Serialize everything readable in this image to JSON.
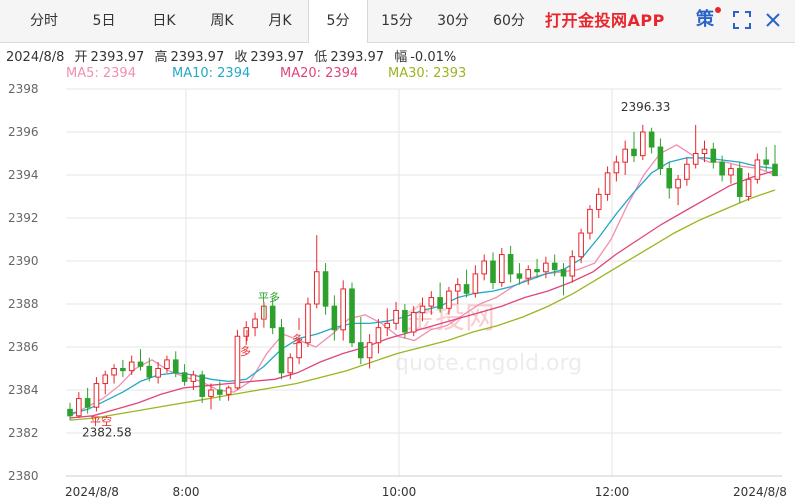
{
  "tabs": [
    {
      "label": "分时",
      "active": false
    },
    {
      "label": "5日",
      "active": false
    },
    {
      "label": "日K",
      "active": false
    },
    {
      "label": "周K",
      "active": false
    },
    {
      "label": "月K",
      "active": false
    },
    {
      "label": "5分",
      "active": true
    },
    {
      "label": "15分",
      "active": false
    },
    {
      "label": "30分",
      "active": false
    },
    {
      "label": "60分",
      "active": false
    }
  ],
  "brand": "打开金投网APP",
  "toolbar": {
    "ce_icon_label": "策",
    "icons": [
      "ce-icon",
      "fullscreen-icon",
      "close-icon"
    ]
  },
  "info": {
    "date": "2024/8/8",
    "open_label": "开",
    "open": "2393.97",
    "high_label": "高",
    "high": "2393.97",
    "close_label": "收",
    "close": "2393.97",
    "low_label": "低",
    "low": "2393.97",
    "change_label": "幅",
    "change": "-0.01%"
  },
  "ma_legend": [
    {
      "label": "MA5: 2394",
      "color": "#f08fb0"
    },
    {
      "label": "MA10: 2394",
      "color": "#24a8c8"
    },
    {
      "label": "MA20: 2394",
      "color": "#e0457b"
    },
    {
      "label": "MA30: 2393",
      "color": "#9ab522"
    }
  ],
  "watermark": {
    "text": "quote.cngold.org",
    "logo": "金投网"
  },
  "colors": {
    "up": "#e8262c",
    "down": "#2ea02e",
    "grid": "#e6e6e6"
  },
  "chart_data": {
    "type": "candlestick",
    "ylim": [
      2380,
      2398
    ],
    "y_ticks": [
      "2398",
      "2396",
      "2394",
      "2392",
      "2390",
      "2388",
      "2386",
      "2384",
      "2382",
      "2380"
    ],
    "x_ticks": [
      "2024/8/8",
      "8:00",
      "10:00",
      "12:00",
      "2024/8/8"
    ],
    "grid": true,
    "annotations": [
      {
        "text": "2396.33",
        "value": 2396.33,
        "kind": "high"
      },
      {
        "text": "2382.58",
        "value": 2382.58,
        "kind": "low"
      }
    ],
    "signals": [
      {
        "text": "平多",
        "color": "#2ea02e"
      },
      {
        "text": "多",
        "color": "#e8262c"
      },
      {
        "text": "多",
        "color": "#e8262c"
      },
      {
        "text": "平空",
        "color": "#e8262c"
      }
    ],
    "ohlc": [
      [
        2383.1,
        2383.4,
        2382.6,
        2382.8
      ],
      [
        2382.8,
        2383.9,
        2382.7,
        2383.6
      ],
      [
        2383.6,
        2384.1,
        2382.9,
        2383.2
      ],
      [
        2383.2,
        2384.6,
        2383.0,
        2384.3
      ],
      [
        2384.3,
        2384.9,
        2383.8,
        2384.7
      ],
      [
        2384.7,
        2385.2,
        2384.3,
        2385.0
      ],
      [
        2385.0,
        2385.4,
        2384.6,
        2384.9
      ],
      [
        2384.9,
        2385.6,
        2384.7,
        2385.3
      ],
      [
        2385.3,
        2385.9,
        2384.9,
        2385.1
      ],
      [
        2385.1,
        2385.5,
        2384.4,
        2384.6
      ],
      [
        2384.6,
        2385.3,
        2384.3,
        2385.0
      ],
      [
        2385.0,
        2385.6,
        2384.8,
        2385.4
      ],
      [
        2385.4,
        2385.8,
        2384.6,
        2384.8
      ],
      [
        2384.8,
        2385.2,
        2384.2,
        2384.4
      ],
      [
        2384.4,
        2384.9,
        2384.0,
        2384.7
      ],
      [
        2384.7,
        2384.9,
        2383.4,
        2383.7
      ],
      [
        2383.7,
        2384.3,
        2383.1,
        2384.0
      ],
      [
        2384.0,
        2384.4,
        2383.5,
        2383.8
      ],
      [
        2383.8,
        2384.2,
        2383.5,
        2384.1
      ],
      [
        2384.1,
        2386.8,
        2384.0,
        2386.5
      ],
      [
        2386.5,
        2387.2,
        2386.1,
        2386.9
      ],
      [
        2386.9,
        2387.6,
        2386.5,
        2387.3
      ],
      [
        2387.3,
        2388.1,
        2386.9,
        2387.9
      ],
      [
        2387.9,
        2388.3,
        2386.6,
        2386.9
      ],
      [
        2386.9,
        2387.3,
        2384.5,
        2384.8
      ],
      [
        2384.8,
        2385.7,
        2384.5,
        2385.5
      ],
      [
        2385.5,
        2386.4,
        2385.2,
        2386.2
      ],
      [
        2386.2,
        2388.3,
        2386.0,
        2388.0
      ],
      [
        2388.0,
        2391.2,
        2387.8,
        2389.5
      ],
      [
        2389.5,
        2389.9,
        2387.5,
        2387.9
      ],
      [
        2387.9,
        2388.4,
        2386.3,
        2386.8
      ],
      [
        2386.8,
        2389.1,
        2386.3,
        2388.7
      ],
      [
        2388.7,
        2389.0,
        2386.0,
        2386.2
      ],
      [
        2386.2,
        2387.4,
        2385.2,
        2385.5
      ],
      [
        2385.5,
        2386.6,
        2385.0,
        2386.2
      ],
      [
        2386.2,
        2387.3,
        2385.7,
        2386.9
      ],
      [
        2386.9,
        2387.8,
        2386.5,
        2387.1
      ],
      [
        2387.1,
        2388.1,
        2386.8,
        2387.7
      ],
      [
        2387.7,
        2388.0,
        2386.4,
        2386.7
      ],
      [
        2386.7,
        2387.9,
        2386.5,
        2387.6
      ],
      [
        2387.6,
        2388.3,
        2387.2,
        2387.9
      ],
      [
        2387.9,
        2388.6,
        2387.5,
        2388.3
      ],
      [
        2388.3,
        2389.0,
        2387.6,
        2387.8
      ],
      [
        2387.8,
        2388.8,
        2387.5,
        2388.6
      ],
      [
        2388.6,
        2389.2,
        2388.0,
        2388.9
      ],
      [
        2388.9,
        2389.6,
        2388.3,
        2388.5
      ],
      [
        2388.5,
        2389.8,
        2388.3,
        2389.4
      ],
      [
        2389.4,
        2390.3,
        2389.1,
        2390.0
      ],
      [
        2390.0,
        2390.4,
        2388.7,
        2389.0
      ],
      [
        2389.0,
        2390.6,
        2388.8,
        2390.3
      ],
      [
        2390.3,
        2390.7,
        2389.0,
        2389.4
      ],
      [
        2389.4,
        2389.9,
        2388.9,
        2389.2
      ],
      [
        2389.2,
        2389.8,
        2388.9,
        2389.6
      ],
      [
        2389.6,
        2390.1,
        2389.2,
        2389.5
      ],
      [
        2389.5,
        2390.2,
        2389.2,
        2389.9
      ],
      [
        2389.9,
        2390.3,
        2389.3,
        2389.6
      ],
      [
        2389.6,
        2389.9,
        2388.4,
        2389.3
      ],
      [
        2389.3,
        2390.5,
        2389.0,
        2390.2
      ],
      [
        2390.2,
        2391.5,
        2389.9,
        2391.3
      ],
      [
        2391.3,
        2392.6,
        2391.0,
        2392.4
      ],
      [
        2392.4,
        2393.4,
        2392.0,
        2393.1
      ],
      [
        2393.1,
        2394.4,
        2392.8,
        2394.1
      ],
      [
        2394.1,
        2394.9,
        2393.7,
        2394.6
      ],
      [
        2394.6,
        2395.6,
        2394.0,
        2395.2
      ],
      [
        2395.2,
        2396.0,
        2394.6,
        2394.9
      ],
      [
        2394.9,
        2396.33,
        2394.7,
        2396.0
      ],
      [
        2396.0,
        2396.2,
        2395.0,
        2395.3
      ],
      [
        2395.3,
        2395.7,
        2394.0,
        2394.3
      ],
      [
        2394.3,
        2394.6,
        2392.9,
        2393.4
      ],
      [
        2393.4,
        2394.0,
        2392.6,
        2393.8
      ],
      [
        2393.8,
        2394.8,
        2393.5,
        2394.5
      ],
      [
        2394.5,
        2396.33,
        2394.3,
        2395.0
      ],
      [
        2395.0,
        2395.6,
        2394.6,
        2395.2
      ],
      [
        2395.2,
        2395.5,
        2394.3,
        2394.6
      ],
      [
        2394.6,
        2394.9,
        2393.7,
        2394.0
      ],
      [
        2394.0,
        2394.5,
        2393.6,
        2394.3
      ],
      [
        2394.3,
        2394.6,
        2392.7,
        2393.0
      ],
      [
        2393.0,
        2394.1,
        2392.8,
        2393.8
      ],
      [
        2393.8,
        2395.0,
        2393.6,
        2394.7
      ],
      [
        2394.7,
        2395.3,
        2394.2,
        2394.5
      ],
      [
        2394.5,
        2395.4,
        2394.1,
        2393.97
      ]
    ],
    "ma_series": [
      {
        "name": "MA5",
        "color": "#f08fb0",
        "values": [
          2382.8,
          2383.2,
          2383.6,
          2384.2,
          2385.0,
          2385.4,
          2384.9,
          2384.6,
          2384.4,
          2384.0,
          2383.9,
          2384.4,
          2385.7,
          2386.6,
          2386.3,
          2386.0,
          2386.6,
          2387.3,
          2387.5,
          2387.1,
          2386.5,
          2386.3,
          2386.8,
          2387.0,
          2387.5,
          2388.0,
          2388.3,
          2388.8,
          2389.2,
          2389.4,
          2389.5,
          2389.6,
          2389.9,
          2391.0,
          2392.6,
          2394.0,
          2395.0,
          2395.4,
          2394.9,
          2394.6,
          2394.6,
          2394.4,
          2394.3,
          2394.0
        ]
      },
      {
        "name": "MA10",
        "color": "#24a8c8",
        "values": [
          2382.9,
          2383.1,
          2383.5,
          2383.9,
          2384.4,
          2384.7,
          2384.8,
          2384.7,
          2384.5,
          2384.4,
          2384.5,
          2385.1,
          2385.9,
          2386.4,
          2386.6,
          2386.9,
          2387.1,
          2387.1,
          2387.2,
          2387.4,
          2387.7,
          2387.9,
          2388.3,
          2388.5,
          2388.6,
          2388.8,
          2389.1,
          2389.4,
          2389.6,
          2390.1,
          2391.1,
          2392.2,
          2393.2,
          2394.1,
          2394.6,
          2394.8,
          2394.8,
          2394.7,
          2394.6,
          2394.4,
          2394.3
        ]
      },
      {
        "name": "MA20",
        "color": "#e0457b",
        "values": [
          2382.7,
          2382.8,
          2383.1,
          2383.4,
          2383.8,
          2384.1,
          2384.2,
          2384.3,
          2384.4,
          2384.5,
          2384.8,
          2385.3,
          2385.7,
          2386.0,
          2386.4,
          2386.7,
          2387.0,
          2387.3,
          2387.6,
          2387.9,
          2388.3,
          2388.6,
          2389.0,
          2389.5,
          2390.3,
          2391.0,
          2391.7,
          2392.3,
          2392.9,
          2393.5,
          2393.9,
          2394.2
        ]
      },
      {
        "name": "MA30",
        "color": "#9ab522",
        "values": [
          2382.6,
          2382.7,
          2382.9,
          2383.1,
          2383.3,
          2383.5,
          2383.7,
          2383.9,
          2384.1,
          2384.3,
          2384.6,
          2384.9,
          2385.3,
          2385.7,
          2386.0,
          2386.3,
          2386.7,
          2387.0,
          2387.4,
          2387.9,
          2388.5,
          2389.2,
          2389.9,
          2390.6,
          2391.3,
          2391.9,
          2392.4,
          2392.9,
          2393.3
        ]
      }
    ]
  }
}
